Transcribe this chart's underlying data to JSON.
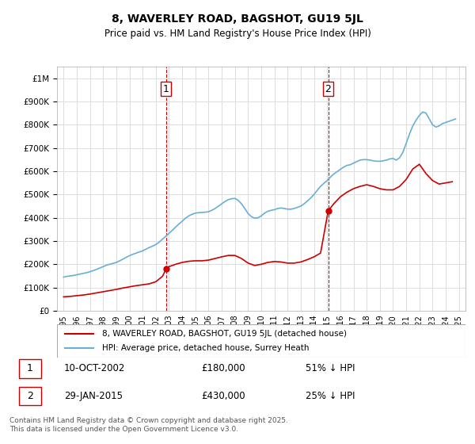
{
  "title": "8, WAVERLEY ROAD, BAGSHOT, GU19 5JL",
  "subtitle": "Price paid vs. HM Land Registry's House Price Index (HPI)",
  "ylabel_ticks": [
    "£0",
    "£100K",
    "£200K",
    "£300K",
    "£400K",
    "£500K",
    "£600K",
    "£700K",
    "£800K",
    "£900K",
    "£1M"
  ],
  "ytick_values": [
    0,
    100000,
    200000,
    300000,
    400000,
    500000,
    600000,
    700000,
    800000,
    900000,
    1000000
  ],
  "ylim": [
    0,
    1050000
  ],
  "xlim_start": 1994.5,
  "xlim_end": 2025.5,
  "xticks": [
    1995,
    1996,
    1997,
    1998,
    1999,
    2000,
    2001,
    2002,
    2003,
    2004,
    2005,
    2006,
    2007,
    2008,
    2009,
    2010,
    2011,
    2012,
    2013,
    2014,
    2015,
    2016,
    2017,
    2018,
    2019,
    2020,
    2021,
    2022,
    2023,
    2024,
    2025
  ],
  "hpi_color": "#6aaed6",
  "price_color": "#cc0000",
  "annotation_color": "#cc0000",
  "vline_color": "#cc0000",
  "grid_color": "#dddddd",
  "bg_color": "#ffffff",
  "legend_label_price": "8, WAVERLEY ROAD, BAGSHOT, GU19 5JL (detached house)",
  "legend_label_hpi": "HPI: Average price, detached house, Surrey Heath",
  "sale1_label": "1",
  "sale1_date": "10-OCT-2002",
  "sale1_price": "£180,000",
  "sale1_pct": "51% ↓ HPI",
  "sale1_year": 2002.78,
  "sale1_value": 180000,
  "sale2_label": "2",
  "sale2_date": "29-JAN-2015",
  "sale2_price": "£430,000",
  "sale2_pct": "25% ↓ HPI",
  "sale2_year": 2015.08,
  "sale2_value": 430000,
  "footer": "Contains HM Land Registry data © Crown copyright and database right 2025.\nThis data is licensed under the Open Government Licence v3.0.",
  "hpi_data": {
    "years": [
      1995.0,
      1995.25,
      1995.5,
      1995.75,
      1996.0,
      1996.25,
      1996.5,
      1996.75,
      1997.0,
      1997.25,
      1997.5,
      1997.75,
      1998.0,
      1998.25,
      1998.5,
      1998.75,
      1999.0,
      1999.25,
      1999.5,
      1999.75,
      2000.0,
      2000.25,
      2000.5,
      2000.75,
      2001.0,
      2001.25,
      2001.5,
      2001.75,
      2002.0,
      2002.25,
      2002.5,
      2002.75,
      2003.0,
      2003.25,
      2003.5,
      2003.75,
      2004.0,
      2004.25,
      2004.5,
      2004.75,
      2005.0,
      2005.25,
      2005.5,
      2005.75,
      2006.0,
      2006.25,
      2006.5,
      2006.75,
      2007.0,
      2007.25,
      2007.5,
      2007.75,
      2008.0,
      2008.25,
      2008.5,
      2008.75,
      2009.0,
      2009.25,
      2009.5,
      2009.75,
      2010.0,
      2010.25,
      2010.5,
      2010.75,
      2011.0,
      2011.25,
      2011.5,
      2011.75,
      2012.0,
      2012.25,
      2012.5,
      2012.75,
      2013.0,
      2013.25,
      2013.5,
      2013.75,
      2014.0,
      2014.25,
      2014.5,
      2014.75,
      2015.0,
      2015.25,
      2015.5,
      2015.75,
      2016.0,
      2016.25,
      2016.5,
      2016.75,
      2017.0,
      2017.25,
      2017.5,
      2017.75,
      2018.0,
      2018.25,
      2018.5,
      2018.75,
      2019.0,
      2019.25,
      2019.5,
      2019.75,
      2020.0,
      2020.25,
      2020.5,
      2020.75,
      2021.0,
      2021.25,
      2021.5,
      2021.75,
      2022.0,
      2022.25,
      2022.5,
      2022.75,
      2023.0,
      2023.25,
      2023.5,
      2023.75,
      2024.0,
      2024.25,
      2024.5,
      2024.75
    ],
    "values": [
      145000,
      148000,
      150000,
      152000,
      155000,
      158000,
      161000,
      164000,
      168000,
      173000,
      178000,
      184000,
      190000,
      196000,
      200000,
      204000,
      208000,
      215000,
      222000,
      230000,
      237000,
      243000,
      248000,
      253000,
      258000,
      265000,
      272000,
      278000,
      285000,
      295000,
      308000,
      320000,
      333000,
      346000,
      360000,
      373000,
      385000,
      398000,
      408000,
      415000,
      420000,
      422000,
      423000,
      424000,
      426000,
      432000,
      440000,
      450000,
      460000,
      470000,
      478000,
      482000,
      483000,
      475000,
      460000,
      440000,
      418000,
      405000,
      398000,
      400000,
      408000,
      420000,
      428000,
      432000,
      435000,
      440000,
      442000,
      440000,
      437000,
      437000,
      440000,
      445000,
      450000,
      460000,
      472000,
      485000,
      500000,
      518000,
      535000,
      548000,
      560000,
      575000,
      588000,
      598000,
      608000,
      618000,
      625000,
      628000,
      635000,
      642000,
      648000,
      650000,
      650000,
      648000,
      645000,
      643000,
      643000,
      645000,
      648000,
      653000,
      655000,
      648000,
      658000,
      682000,
      720000,
      760000,
      795000,
      820000,
      840000,
      855000,
      850000,
      825000,
      800000,
      790000,
      795000,
      805000,
      810000,
      815000,
      820000,
      825000
    ]
  },
  "price_data": {
    "years": [
      1995.0,
      1995.5,
      1996.0,
      1996.5,
      1997.0,
      1997.5,
      1998.0,
      1998.5,
      1999.0,
      1999.5,
      2000.0,
      2000.5,
      2001.0,
      2001.5,
      2002.0,
      2002.5,
      2002.78,
      2003.0,
      2003.5,
      2004.0,
      2004.5,
      2005.0,
      2005.5,
      2006.0,
      2006.5,
      2007.0,
      2007.5,
      2008.0,
      2008.5,
      2009.0,
      2009.5,
      2010.0,
      2010.5,
      2011.0,
      2011.5,
      2012.0,
      2012.5,
      2013.0,
      2013.5,
      2014.0,
      2014.5,
      2015.08,
      2015.5,
      2016.0,
      2016.5,
      2017.0,
      2017.5,
      2018.0,
      2018.5,
      2019.0,
      2019.5,
      2020.0,
      2020.5,
      2021.0,
      2021.5,
      2022.0,
      2022.5,
      2023.0,
      2023.5,
      2024.0,
      2024.5
    ],
    "values": [
      60000,
      62000,
      65000,
      68000,
      72000,
      77000,
      82000,
      87000,
      92000,
      98000,
      103000,
      108000,
      112000,
      116000,
      125000,
      148000,
      180000,
      190000,
      200000,
      208000,
      213000,
      215000,
      215000,
      218000,
      225000,
      232000,
      238000,
      238000,
      225000,
      205000,
      195000,
      200000,
      208000,
      212000,
      210000,
      205000,
      205000,
      210000,
      220000,
      232000,
      248000,
      430000,
      460000,
      490000,
      510000,
      525000,
      535000,
      542000,
      535000,
      525000,
      520000,
      520000,
      535000,
      565000,
      610000,
      630000,
      590000,
      560000,
      545000,
      550000,
      555000
    ]
  }
}
